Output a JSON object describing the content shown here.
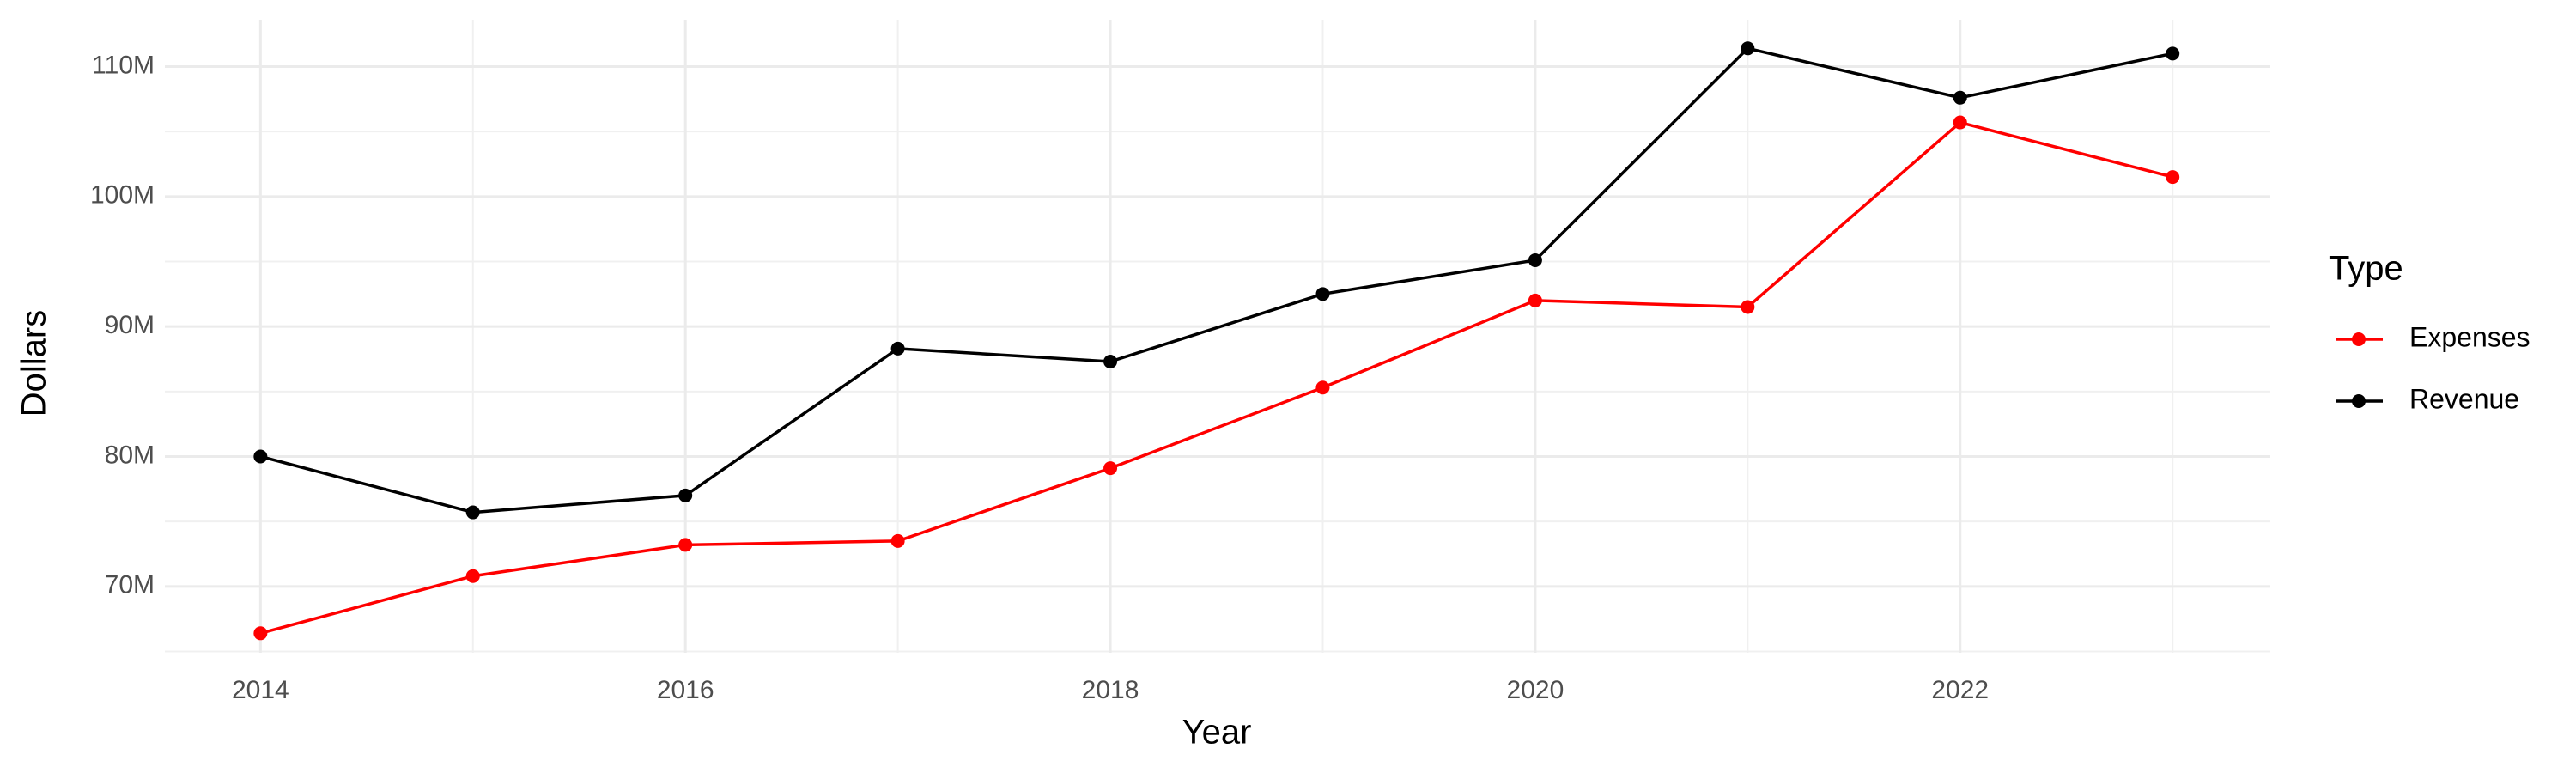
{
  "chart_data": {
    "type": "line",
    "x_label": "Year",
    "y_label": "Dollars",
    "legend_title": "Type",
    "x": [
      2014,
      2015,
      2016,
      2017,
      2018,
      2019,
      2020,
      2021,
      2022,
      2023
    ],
    "series": [
      {
        "name": "Expenses",
        "color": "#ff0000",
        "values": [
          66400000,
          70800000,
          73200000,
          73500000,
          79100000,
          85300000,
          92000000,
          91500000,
          105700000,
          101500000
        ]
      },
      {
        "name": "Revenue",
        "color": "#000000",
        "values": [
          80000000,
          75700000,
          77000000,
          88300000,
          87300000,
          92500000,
          95100000,
          111400000,
          107600000,
          111000000
        ]
      }
    ],
    "xlim": [
      2013.55,
      2023.46
    ],
    "xticks": [
      2014,
      2016,
      2018,
      2020,
      2022
    ],
    "ylim": [
      64900000,
      113600000
    ],
    "yticks": [
      {
        "value": 70000000,
        "label": "70M"
      },
      {
        "value": 80000000,
        "label": "80M"
      },
      {
        "value": 90000000,
        "label": "90M"
      },
      {
        "value": 100000000,
        "label": "100M"
      },
      {
        "value": 110000000,
        "label": "110M"
      }
    ],
    "grid": true,
    "legend": "right"
  }
}
